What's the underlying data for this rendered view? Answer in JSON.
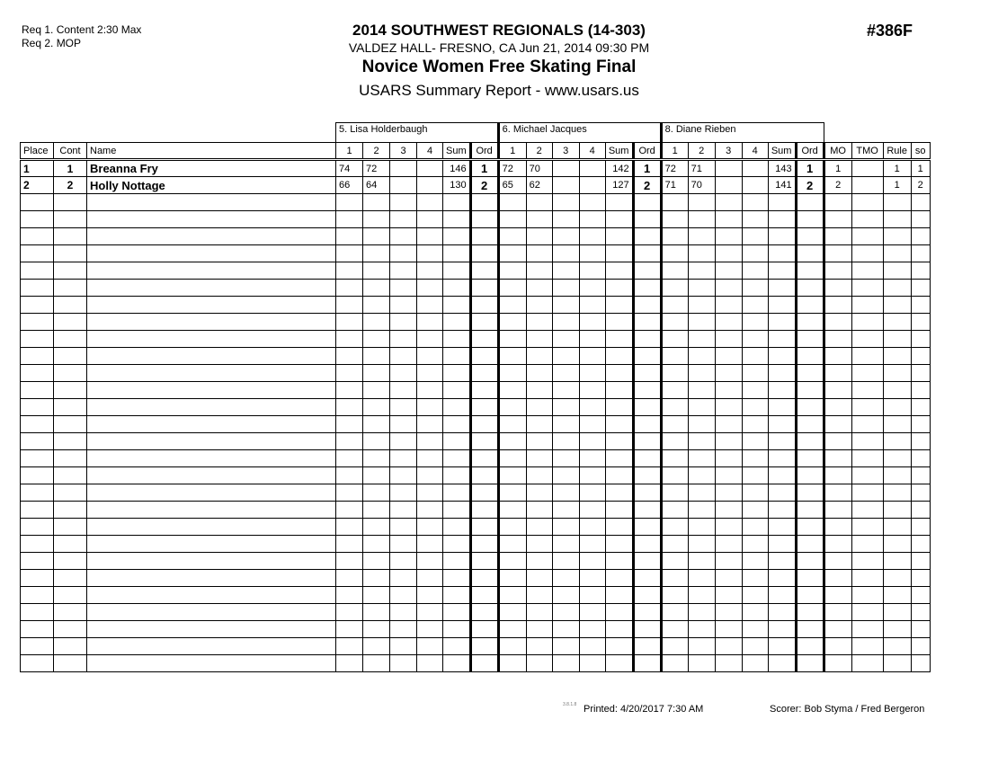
{
  "header": {
    "req1": "Req 1.  Content 2:30 Max",
    "req2": "Req 2.  MOP",
    "title": "2014 SOUTHWEST REGIONALS (14-303)",
    "venue": "VALDEZ HALL- FRESNO, CA  Jun 21, 2014  09:30 PM",
    "event_name": "Novice Women Free Skating Final",
    "report": "USARS Summary Report - www.usars.us",
    "event_number": "#386F"
  },
  "judges": [
    "5.  Lisa Holderbaugh",
    "6.  Michael Jacques",
    "8.  Diane Rieben"
  ],
  "columns": {
    "place": "Place",
    "cont": "Cont",
    "name": "Name",
    "judge_cols": [
      "1",
      "2",
      "3",
      "4",
      "Sum",
      "Ord"
    ],
    "mo": "MO",
    "tmo": "TMO",
    "rule": "Rule",
    "so": "so"
  },
  "rows": [
    {
      "place": "1",
      "cont": "1",
      "name": "Breanna Fry",
      "judges": [
        [
          "74",
          "72",
          "",
          "",
          "146",
          "1"
        ],
        [
          "72",
          "70",
          "",
          "",
          "142",
          "1"
        ],
        [
          "72",
          "71",
          "",
          "",
          "143",
          "1"
        ]
      ],
      "mo": "1",
      "tmo": "",
      "rule": "1",
      "so": "1"
    },
    {
      "place": "2",
      "cont": "2",
      "name": "Holly Nottage",
      "judges": [
        [
          "66",
          "64",
          "",
          "",
          "130",
          "2"
        ],
        [
          "65",
          "62",
          "",
          "",
          "127",
          "2"
        ],
        [
          "71",
          "70",
          "",
          "",
          "141",
          "2"
        ]
      ],
      "mo": "2",
      "tmo": "",
      "rule": "1",
      "so": "2"
    }
  ],
  "footer": {
    "version": "3.8.1.8",
    "printed": "Printed:  4/20/2017  7:30 AM",
    "scorer": "Scorer:   Bob Styma / Fred Bergeron"
  }
}
